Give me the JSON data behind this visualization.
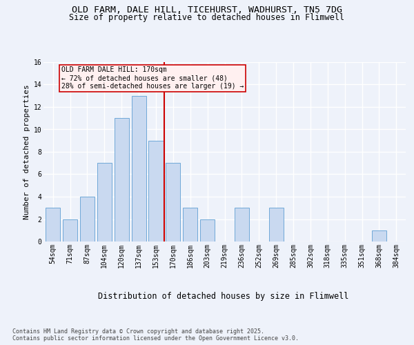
{
  "title": "OLD FARM, DALE HILL, TICEHURST, WADHURST, TN5 7DG",
  "subtitle": "Size of property relative to detached houses in Flimwell",
  "xlabel": "Distribution of detached houses by size in Flimwell",
  "ylabel": "Number of detached properties",
  "categories": [
    "54sqm",
    "71sqm",
    "87sqm",
    "104sqm",
    "120sqm",
    "137sqm",
    "153sqm",
    "170sqm",
    "186sqm",
    "203sqm",
    "219sqm",
    "236sqm",
    "252sqm",
    "269sqm",
    "285sqm",
    "302sqm",
    "318sqm",
    "335sqm",
    "351sqm",
    "368sqm",
    "384sqm"
  ],
  "values": [
    3,
    2,
    4,
    7,
    11,
    13,
    9,
    7,
    3,
    2,
    0,
    3,
    0,
    3,
    0,
    0,
    0,
    0,
    0,
    1,
    0
  ],
  "bar_color": "#c9d9f0",
  "bar_edge_color": "#6fa8d8",
  "ref_line_index": 7,
  "ref_line_color": "#cc0000",
  "annotation_text": "OLD FARM DALE HILL: 170sqm\n← 72% of detached houses are smaller (48)\n28% of semi-detached houses are larger (19) →",
  "annotation_box_facecolor": "#fff0f0",
  "annotation_box_edgecolor": "#cc0000",
  "ylim": [
    0,
    16
  ],
  "yticks": [
    0,
    2,
    4,
    6,
    8,
    10,
    12,
    14,
    16
  ],
  "title_fontsize": 9.5,
  "subtitle_fontsize": 8.5,
  "xlabel_fontsize": 8.5,
  "ylabel_fontsize": 8,
  "tick_fontsize": 7,
  "annotation_fontsize": 7,
  "footnote": "Contains HM Land Registry data © Crown copyright and database right 2025.\nContains public sector information licensed under the Open Government Licence v3.0.",
  "footnote_fontsize": 6,
  "background_color": "#eef2fa",
  "grid_color": "#ffffff"
}
